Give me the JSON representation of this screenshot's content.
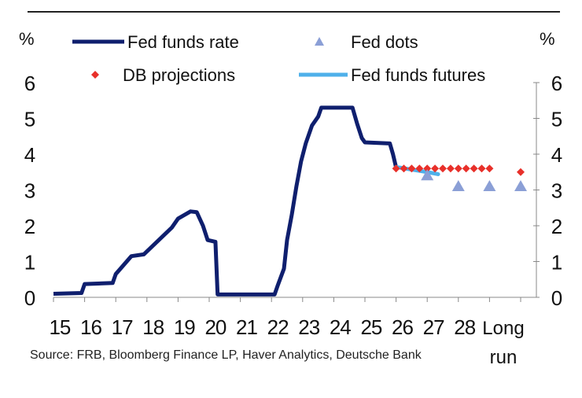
{
  "chart_data": {
    "type": "line",
    "title": "",
    "ylabel_left": "%",
    "ylabel_right": "%",
    "ylim": [
      0,
      6
    ],
    "yticks": [
      "0",
      "1",
      "2",
      "3",
      "4",
      "5",
      "6"
    ],
    "xtick_labels": [
      "15",
      "16",
      "17",
      "18",
      "19",
      "20",
      "21",
      "22",
      "23",
      "24",
      "25",
      "26",
      "27",
      "28",
      "Long run"
    ],
    "legend": {
      "fed_funds_rate": "Fed funds rate",
      "fed_dots": "Fed dots",
      "db_projections": "DB projections",
      "fed_funds_futures": "Fed funds futures"
    },
    "series": [
      {
        "name": "Fed funds rate",
        "color": "#0f1f6e",
        "points": [
          [
            2015.0,
            0.1
          ],
          [
            2015.9,
            0.12
          ],
          [
            2016.0,
            0.37
          ],
          [
            2016.9,
            0.4
          ],
          [
            2017.0,
            0.65
          ],
          [
            2017.25,
            0.9
          ],
          [
            2017.5,
            1.15
          ],
          [
            2017.9,
            1.2
          ],
          [
            2018.2,
            1.45
          ],
          [
            2018.5,
            1.7
          ],
          [
            2018.8,
            1.95
          ],
          [
            2019.0,
            2.2
          ],
          [
            2019.4,
            2.4
          ],
          [
            2019.6,
            2.38
          ],
          [
            2019.8,
            2.0
          ],
          [
            2019.95,
            1.6
          ],
          [
            2020.2,
            1.55
          ],
          [
            2020.27,
            0.08
          ],
          [
            2021.0,
            0.08
          ],
          [
            2022.1,
            0.08
          ],
          [
            2022.2,
            0.33
          ],
          [
            2022.4,
            0.8
          ],
          [
            2022.5,
            1.6
          ],
          [
            2022.65,
            2.3
          ],
          [
            2022.8,
            3.1
          ],
          [
            2022.95,
            3.8
          ],
          [
            2023.1,
            4.3
          ],
          [
            2023.3,
            4.8
          ],
          [
            2023.5,
            5.05
          ],
          [
            2023.6,
            5.3
          ],
          [
            2024.6,
            5.3
          ],
          [
            2024.75,
            4.85
          ],
          [
            2024.9,
            4.45
          ],
          [
            2025.0,
            4.33
          ],
          [
            2025.8,
            4.3
          ],
          [
            2025.9,
            4.0
          ],
          [
            2026.0,
            3.63
          ]
        ]
      },
      {
        "name": "Fed funds futures",
        "color": "#4fb0ea",
        "points": [
          [
            2026.0,
            3.64
          ],
          [
            2026.5,
            3.57
          ],
          [
            2027.0,
            3.5
          ],
          [
            2027.35,
            3.44
          ]
        ]
      },
      {
        "name": "DB projections",
        "color": "#e8302a",
        "points": [
          [
            2026.0,
            3.6
          ],
          [
            2026.25,
            3.6
          ],
          [
            2026.5,
            3.6
          ],
          [
            2026.75,
            3.6
          ],
          [
            2027.0,
            3.6
          ],
          [
            2027.25,
            3.6
          ],
          [
            2027.5,
            3.6
          ],
          [
            2027.75,
            3.6
          ],
          [
            2028.0,
            3.6
          ],
          [
            2028.25,
            3.6
          ],
          [
            2028.5,
            3.6
          ],
          [
            2028.75,
            3.6
          ],
          [
            2029.0,
            3.6
          ],
          [
            2030.0,
            3.5
          ]
        ]
      },
      {
        "name": "Fed dots",
        "color": "#8b9fd6",
        "points": [
          [
            2027.0,
            3.4
          ],
          [
            2028.0,
            3.1
          ],
          [
            2029.0,
            3.1
          ],
          [
            2030.0,
            3.1
          ]
        ]
      }
    ]
  },
  "source": "Source: FRB, Bloomberg Finance LP, Haver Analytics, Deutsche Bank"
}
